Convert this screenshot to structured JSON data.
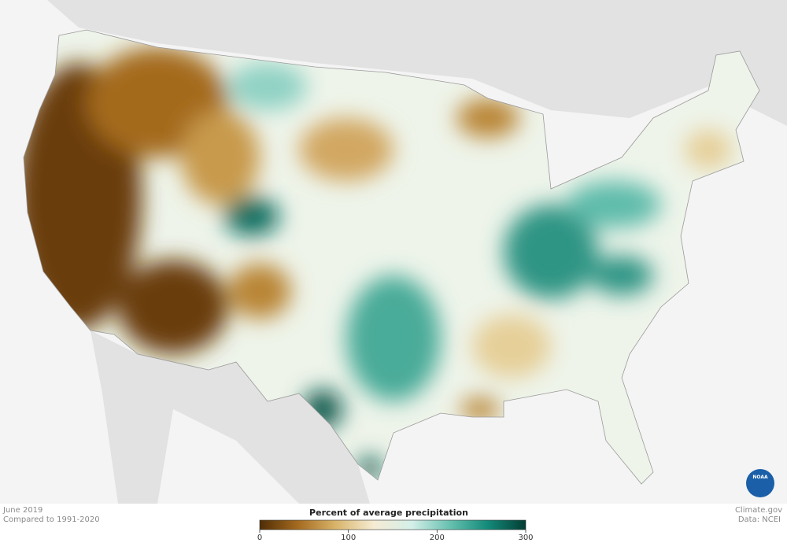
{
  "header": {
    "date": "June 2019",
    "baseline": "Compared to 1991-2020"
  },
  "legend": {
    "title": "Percent of average precipitation",
    "range": [
      0,
      300
    ],
    "ticks": [
      0,
      100,
      200,
      300
    ],
    "colors": [
      "#4f2d05",
      "#a46a1f",
      "#d9b46a",
      "#f5ecd3",
      "#d4efe9",
      "#67c1b0",
      "#138a7a",
      "#033d33"
    ]
  },
  "credits": {
    "site": "Climate.gov",
    "source": "Data: NCEI",
    "logo": "NOAA"
  }
}
